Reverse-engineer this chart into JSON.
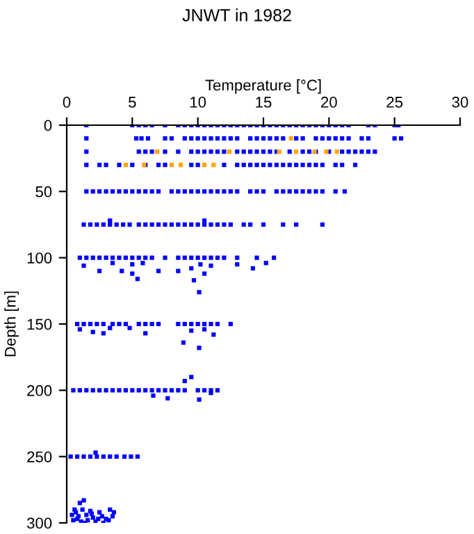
{
  "chart_data": {
    "type": "scatter",
    "title": "JNWT in 1982",
    "xlabel": "Temperature [°C]",
    "ylabel": "Depth [m]",
    "xlim": [
      0,
      30
    ],
    "xticks": [
      0,
      5,
      10,
      15,
      20,
      25,
      30
    ],
    "ylim": [
      300,
      0
    ],
    "yticks": [
      0,
      50,
      100,
      150,
      200,
      250,
      300
    ],
    "marker": "square",
    "grid": false,
    "legend": false,
    "series": [
      {
        "color": "#0000ff",
        "x": [
          1.5,
          5,
          5.5,
          6,
          6.5,
          7.5,
          8.5,
          9,
          9.5,
          10,
          10.5,
          11,
          11.5,
          12,
          12.5,
          13,
          13.5,
          14,
          14.5,
          15,
          15.5,
          16,
          16.5,
          17,
          17.5,
          18,
          18.5,
          19,
          19.5,
          20,
          20.5,
          21,
          21.5,
          23,
          23.5,
          25,
          25.3,
          1.5,
          5.3,
          5.7,
          6.2,
          7.5,
          8,
          9,
          9.5,
          10,
          10.5,
          11,
          11.5,
          12,
          12.5,
          13,
          14,
          14.5,
          15,
          15.5,
          16,
          16.5,
          17.5,
          18,
          19,
          19.5,
          20,
          20.5,
          21,
          21.5,
          22.5,
          23,
          25,
          25.5,
          1.5,
          5.5,
          6,
          6.5,
          7.5,
          8.5,
          9.5,
          10,
          10.5,
          11,
          11.5,
          12,
          13,
          13.5,
          14,
          14.5,
          15,
          15.5,
          16,
          17,
          18,
          18.5,
          19,
          20,
          21,
          21.5,
          22,
          22.5,
          23,
          23.5,
          1.5,
          2.5,
          3,
          4,
          5,
          6,
          7,
          7.5,
          9.5,
          10,
          12,
          13,
          13.5,
          14,
          14.5,
          15,
          15.5,
          16,
          16.5,
          17,
          17.5,
          18,
          18.5,
          19,
          19.5,
          20.5,
          21,
          22,
          1.5,
          2,
          2.5,
          3,
          3.5,
          4,
          4.5,
          5,
          5.5,
          6,
          6.5,
          7,
          8,
          8.5,
          9,
          9.5,
          10,
          10.5,
          11,
          11.5,
          12,
          12.5,
          13,
          14,
          14.5,
          15,
          16,
          16.5,
          17,
          17.5,
          18,
          18.5,
          19,
          19.5,
          20.5,
          21.2,
          1.3,
          1.8,
          2.3,
          2.8,
          3.3,
          3.8,
          4.3,
          4.8,
          5.5,
          6,
          6.5,
          7,
          7.5,
          8,
          8.5,
          9,
          9.5,
          10,
          10.5,
          11,
          11.5,
          12,
          12.5,
          13.5,
          14,
          15,
          16.5,
          17.5,
          19.5,
          3.3,
          10.5,
          1,
          1.5,
          2,
          2.5,
          3,
          3.5,
          4,
          4.5,
          5,
          5.5,
          6,
          6.5,
          7.5,
          8.5,
          9,
          9.5,
          10,
          10.5,
          11,
          11.5,
          12,
          13,
          14.5,
          15.8,
          1.3,
          2.5,
          3.5,
          4.2,
          5,
          5.8,
          7,
          8.5,
          9.5,
          10.2,
          10.5,
          11,
          13,
          14.2,
          15.2,
          10.1,
          9.7,
          5.4,
          5,
          0.8,
          1.3,
          1.8,
          2.3,
          2.8,
          3.5,
          4,
          4.5,
          5.5,
          6,
          6.5,
          7,
          8.5,
          9,
          9.5,
          10,
          10.5,
          11,
          11.5,
          12.5,
          1,
          2,
          2.8,
          3.3,
          4.8,
          6,
          8.9,
          10.1,
          9.5,
          11.2,
          10.5,
          0.5,
          1,
          1.5,
          2,
          2.5,
          3,
          3.5,
          4,
          4.5,
          5,
          5.5,
          6,
          6.5,
          7,
          7.5,
          8,
          8.5,
          9,
          10,
          10.5,
          11,
          11.5,
          9,
          9.5,
          10.1,
          6.6,
          7.7,
          11,
          0.3,
          0.8,
          1.3,
          1.8,
          2.3,
          2.8,
          3.3,
          3.8,
          4.4,
          4.9,
          5.4,
          2.2,
          1.0,
          1.3,
          0.6,
          1.2,
          1.8,
          2.5,
          3.3,
          3.6,
          0.4,
          0.9,
          1.5,
          2.0,
          2.7,
          3.0,
          0.5,
          1.1,
          1.6,
          2.2,
          2.8,
          3.2,
          0.8,
          1.9,
          2.4,
          3.5,
          1.4,
          0.7
        ],
        "values": [
          0,
          0,
          0,
          0,
          0,
          0,
          0,
          0,
          0,
          0,
          0,
          0,
          0,
          0,
          0,
          0,
          0,
          0,
          0,
          0,
          0,
          0,
          0,
          0,
          0,
          0,
          0,
          0,
          0,
          0,
          0,
          0,
          0,
          0,
          0,
          0,
          0,
          10,
          10,
          10,
          10,
          10,
          10,
          10,
          10,
          10,
          10,
          10,
          10,
          10,
          10,
          10,
          10,
          10,
          10,
          10,
          10,
          10,
          10,
          10,
          10,
          10,
          10,
          10,
          10,
          10,
          10,
          10,
          10,
          10,
          20,
          20,
          20,
          20,
          20,
          20,
          20,
          20,
          20,
          20,
          20,
          20,
          20,
          20,
          20,
          20,
          20,
          20,
          20,
          20,
          20,
          20,
          20,
          20,
          20,
          20,
          20,
          20,
          20,
          20,
          30,
          30,
          30,
          30,
          30,
          30,
          30,
          30,
          30,
          30,
          30,
          30,
          30,
          30,
          30,
          30,
          30,
          30,
          30,
          30,
          30,
          30,
          30,
          30,
          30,
          30,
          30,
          30,
          50,
          50,
          50,
          50,
          50,
          50,
          50,
          50,
          50,
          50,
          50,
          50,
          50,
          50,
          50,
          50,
          50,
          50,
          50,
          50,
          50,
          50,
          50,
          50,
          50,
          50,
          50,
          50,
          50,
          50,
          50,
          50,
          50,
          50,
          50,
          50,
          75,
          75,
          75,
          75,
          75,
          75,
          75,
          75,
          75,
          75,
          75,
          75,
          75,
          75,
          75,
          75,
          75,
          75,
          75,
          75,
          75,
          75,
          75,
          75,
          75,
          75,
          75,
          75,
          75,
          72,
          72,
          100,
          100,
          100,
          100,
          100,
          100,
          100,
          100,
          100,
          100,
          100,
          100,
          100,
          100,
          100,
          100,
          100,
          100,
          100,
          100,
          100,
          100,
          100,
          100,
          106,
          110,
          104,
          110,
          105,
          104,
          110,
          110,
          108,
          105,
          112,
          106,
          105,
          108,
          104,
          126,
          117,
          116,
          112,
          150,
          150,
          150,
          150,
          150,
          150,
          150,
          150,
          150,
          150,
          150,
          150,
          150,
          150,
          150,
          150,
          150,
          150,
          150,
          150,
          154,
          156,
          157,
          153,
          153,
          157,
          164,
          168,
          155,
          158,
          154,
          200,
          200,
          200,
          200,
          200,
          200,
          200,
          200,
          200,
          200,
          200,
          200,
          200,
          200,
          200,
          200,
          200,
          200,
          200,
          200,
          200,
          200,
          193,
          190,
          207,
          204,
          206,
          202,
          250,
          250,
          250,
          250,
          250,
          250,
          250,
          250,
          250,
          250,
          250,
          247,
          285,
          283,
          290,
          290,
          291,
          292,
          290,
          292,
          294,
          295,
          294,
          296,
          295,
          297,
          298,
          299,
          298,
          299,
          300,
          298,
          297,
          293,
          297,
          295,
          300,
          292
        ]
      },
      {
        "color": "#ffa500",
        "x": [
          17.1,
          6.9,
          12.4,
          16.2,
          17.5,
          18.9,
          19.8,
          20.6,
          4.5,
          5.9,
          8.0,
          8.7,
          10.5,
          11.2
        ],
        "values": [
          10,
          20,
          20,
          20,
          20,
          20,
          20,
          20,
          30,
          30,
          30,
          30,
          30,
          30
        ]
      }
    ]
  }
}
